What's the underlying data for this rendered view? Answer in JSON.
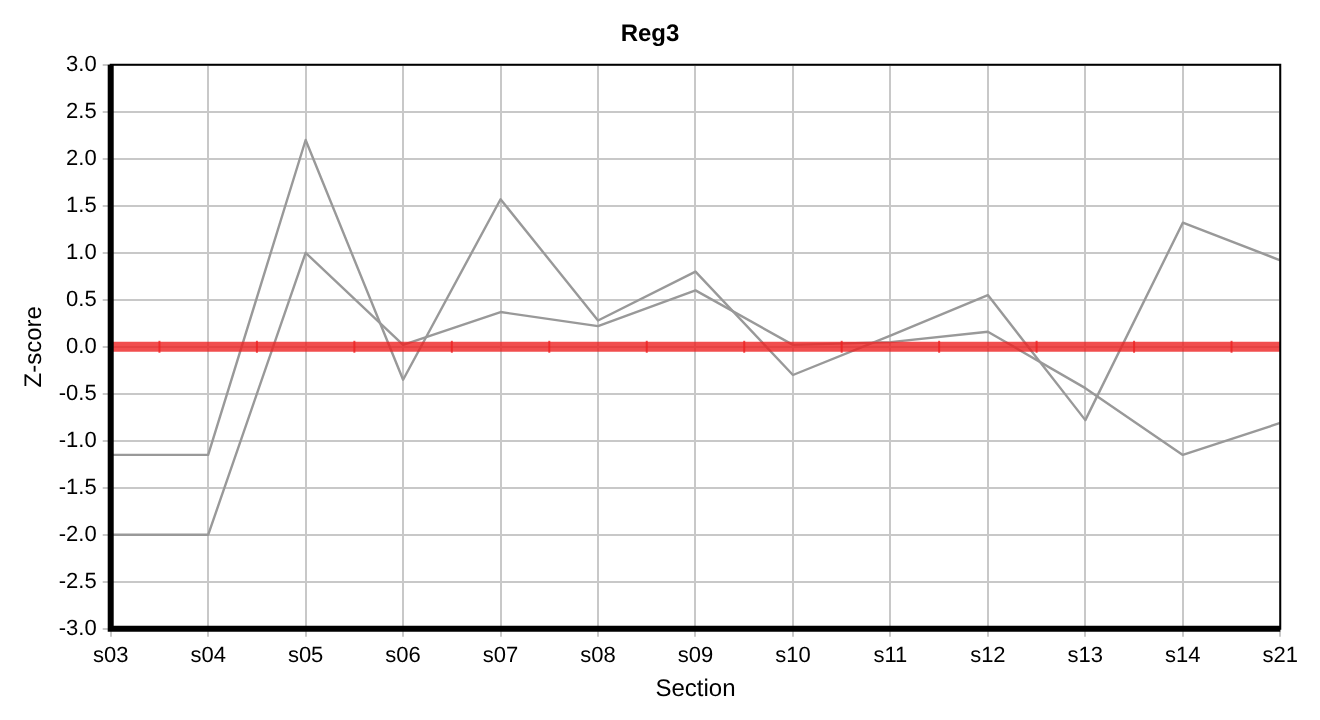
{
  "chart_data": {
    "type": "line",
    "title": "Reg3",
    "xlabel": "Section",
    "ylabel": "Z-score",
    "categories": [
      "s03",
      "s04",
      "s05",
      "s06",
      "s07",
      "s08",
      "s09",
      "s10",
      "s11",
      "s12",
      "s13",
      "s14",
      "s21"
    ],
    "series": [
      {
        "color": "#999999",
        "values": [
          -1.15,
          -1.15,
          2.2,
          -0.35,
          1.57,
          0.28,
          0.8,
          -0.3,
          0.12,
          0.55,
          -0.78,
          1.32,
          0.92
        ]
      },
      {
        "color": "#999999",
        "values": [
          -2.0,
          -2.0,
          1.0,
          0.02,
          0.37,
          0.22,
          0.6,
          0.02,
          0.05,
          0.16,
          -0.44,
          -1.15,
          -0.81
        ]
      }
    ],
    "ylim": [
      -3,
      3
    ],
    "yticks": [
      {
        "value": -3,
        "label": "-3.0"
      },
      {
        "value": -2.5,
        "label": "-2.5"
      },
      {
        "value": -2,
        "label": "-2.0"
      },
      {
        "value": -1.5,
        "label": "-1.5"
      },
      {
        "value": -1,
        "label": "-1.0"
      },
      {
        "value": -0.5,
        "label": "-0.5"
      },
      {
        "value": 0,
        "label": "0.0"
      },
      {
        "value": 0.5,
        "label": "0.5"
      },
      {
        "value": 1,
        "label": "1.0"
      },
      {
        "value": 1.5,
        "label": "1.5"
      },
      {
        "value": 2,
        "label": "2.0"
      },
      {
        "value": 2.5,
        "label": "2.5"
      },
      {
        "value": 3,
        "label": "3.0"
      }
    ],
    "ref_lines": [
      {
        "axis": "y",
        "value": 0,
        "color": "#ee2222"
      }
    ],
    "grid": true,
    "legend": false,
    "marker": "none",
    "line_style": "solid"
  }
}
